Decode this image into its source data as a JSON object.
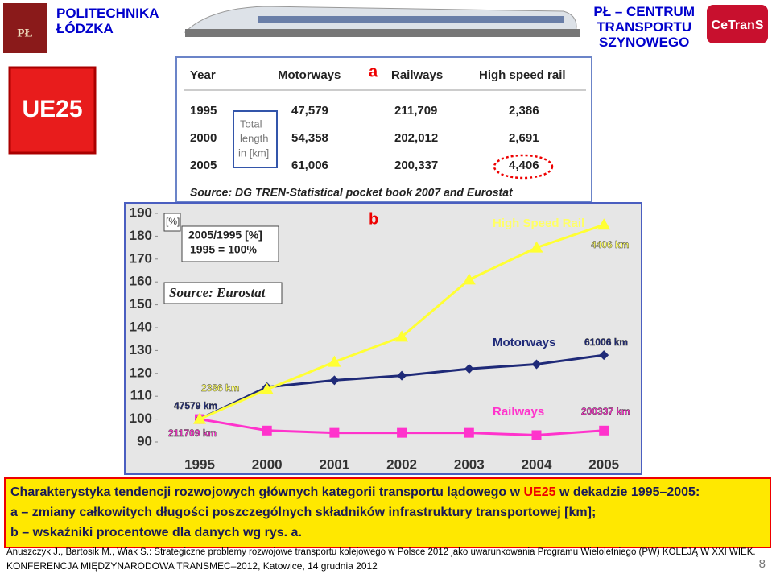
{
  "header": {
    "left": [
      "POLITECHNIKA",
      "ŁÓDZKA"
    ],
    "emblem": "PŁ",
    "right": [
      "PŁ – CENTRUM",
      "TRANSPORTU",
      "SZYNOWEGO"
    ],
    "logo": "CeTranS"
  },
  "badge": "UE25",
  "table": {
    "label": "a",
    "columns": [
      "Year",
      "Motorways",
      "Railways",
      "High speed rail"
    ],
    "rows": [
      [
        "1995",
        "47,579",
        "211,709",
        "2,386"
      ],
      [
        "2000",
        "54,358",
        "202,012",
        "2,691"
      ],
      [
        "2005",
        "61,006",
        "200,337",
        "4,406"
      ]
    ],
    "note": [
      "Total",
      "length",
      "in [km]"
    ],
    "source": "Source: DG TREN-Statistical pocket book 2007 and Eurostat"
  },
  "chart_data": {
    "type": "line",
    "label": "b",
    "unit": "[%]",
    "box": [
      "2005/1995 [%]",
      "1995 = 100%"
    ],
    "source": "Source: Eurostat",
    "categories": [
      "1995",
      "2000",
      "2001",
      "2002",
      "2003",
      "2004",
      "2005"
    ],
    "series": [
      {
        "name": "High Speed Rail",
        "color": "#ffff33",
        "marker": "triangle",
        "values": [
          100,
          113,
          125,
          136,
          161,
          175,
          185
        ]
      },
      {
        "name": "Motorways",
        "color": "#1f2a78",
        "marker": "diamond",
        "values": [
          100,
          114,
          117,
          119,
          122,
          124,
          128
        ]
      },
      {
        "name": "Railways",
        "color": "#ff33cc",
        "marker": "square",
        "values": [
          100,
          95,
          94,
          94,
          94,
          93,
          95
        ]
      }
    ],
    "annotations": [
      "4406 km",
      "61006 km",
      "200337 km",
      "2386 km",
      "47579 km",
      "211709 km"
    ],
    "ylim": [
      90,
      190
    ],
    "yticks": [
      90,
      100,
      110,
      120,
      130,
      140,
      150,
      160,
      170,
      180,
      190
    ]
  },
  "caption": {
    "line1": [
      "Charakterystyka tendencji rozwojowych głównych kategorii transportu lądowego w ",
      "UE25",
      " w dekadzie 1995–2005:"
    ],
    "line2": "a – zmiany całkowitych długości poszczególnych składników infrastruktury transportowej [km];",
    "line3": "b – wskaźniki procentowe dla danych wg rys. a."
  },
  "footer": {
    "reference": "Anuszczyk J., Bartosik M., Wiak S.: Strategiczne problemy rozwojowe transportu kolejowego w Polsce 2012 jako uwarunkowania Programu Wieloletniego (PW) KOLEJĄ W XXI WIEK.",
    "conference": "KONFERENCJA MIĘDZYNARODOWA TRANSMEC–2012, Katowice, 14 grudnia 2012",
    "page": "8"
  }
}
